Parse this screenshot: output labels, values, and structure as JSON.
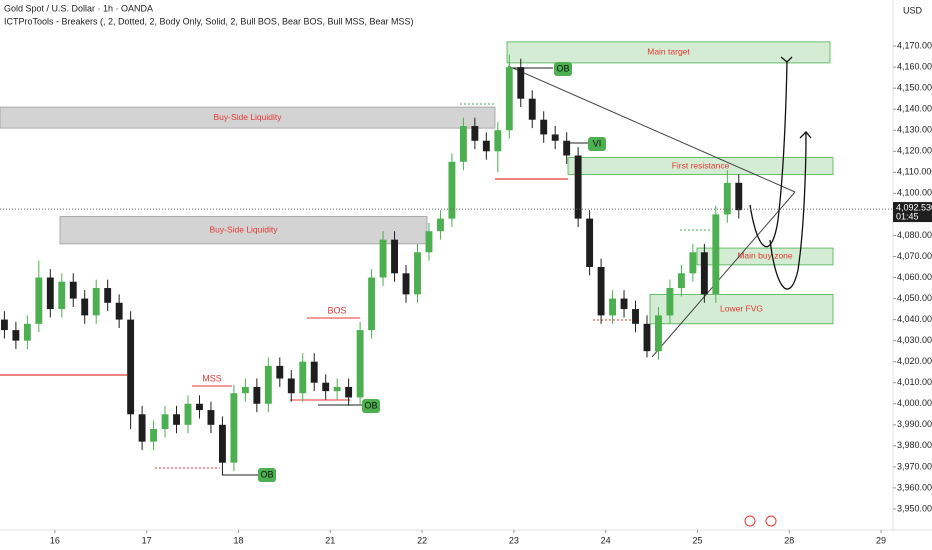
{
  "chart_data": {
    "type": "candlestick",
    "title": "Gold Spot / U.S. Dollar · 1h · OANDA",
    "subtitle": "ICTProTools - Breakers (, 2, Dotted, 2, Body Only, Solid, 2, Bull BOS, Bear BOS, Bull MSS, Bear MSS)",
    "currency": "USD",
    "up_color": "#4caf50",
    "down_color": "#1e1e1e",
    "x": [
      -0.55,
      -0.425,
      -0.3,
      -0.175,
      -0.05,
      0.075,
      0.2,
      0.325,
      0.45,
      0.575,
      0.7,
      0.825,
      0.95,
      1.075,
      1.2,
      1.325,
      1.45,
      1.575,
      1.7,
      1.825,
      1.95,
      2.075,
      2.2,
      2.325,
      2.45,
      2.575,
      2.7,
      2.825,
      2.95,
      3.075,
      3.2,
      3.325,
      3.45,
      3.575,
      3.7,
      3.825,
      3.95,
      4.075,
      4.2,
      4.325,
      4.45,
      4.575,
      4.7,
      4.825,
      4.95,
      5.075,
      5.2,
      5.325,
      5.45,
      5.575,
      5.7,
      5.825,
      5.95,
      6.075,
      6.2,
      6.325,
      6.45,
      6.575,
      6.7,
      6.825,
      6.95,
      7.075,
      7.2,
      7.325,
      7.45
    ],
    "open": [
      4040,
      4035,
      4030,
      4038,
      4060,
      4045,
      4058,
      4050,
      4042,
      4055,
      4048,
      4040,
      3995,
      3982,
      3988,
      3995,
      3990,
      4000,
      3997,
      3990,
      3972,
      4005,
      4008,
      4000,
      4018,
      4012,
      4005,
      4020,
      4010,
      4006,
      4008,
      4003,
      4035,
      4060,
      4078,
      4062,
      4052,
      4072,
      4082,
      4088,
      4115,
      4132,
      4125,
      4120,
      4130,
      4160,
      4145,
      4135,
      4128,
      4125,
      4118,
      4088,
      4065,
      4042,
      4050,
      4045,
      4038,
      4025,
      4042,
      4055,
      4062,
      4072,
      4052,
      4090,
      4105
    ],
    "high": [
      4044,
      4039,
      4042,
      4068,
      4064,
      4062,
      4062,
      4054,
      4059,
      4059,
      4052,
      4044,
      3999,
      3992,
      3999,
      3999,
      4004,
      4004,
      4001,
      3994,
      4009,
      4012,
      4012,
      4022,
      4022,
      4016,
      4024,
      4024,
      4014,
      4012,
      4012,
      4039,
      4064,
      4082,
      4082,
      4066,
      4076,
      4086,
      4092,
      4119,
      4136,
      4136,
      4129,
      4134,
      4166,
      4164,
      4149,
      4139,
      4132,
      4129,
      4122,
      4092,
      4069,
      4054,
      4054,
      4049,
      4042,
      4046,
      4059,
      4066,
      4076,
      4076,
      4094,
      4111,
      4109
    ],
    "low": [
      4031,
      4026,
      4026,
      4034,
      4041,
      4041,
      4046,
      4038,
      4038,
      4044,
      4036,
      3988,
      3978,
      3978,
      3984,
      3986,
      3986,
      3993,
      3986,
      3966,
      3968,
      4001,
      3996,
      3996,
      4008,
      4001,
      4001,
      4006,
      4002,
      4002,
      3999,
      3999,
      4031,
      4056,
      4058,
      4048,
      4048,
      4068,
      4078,
      4084,
      4111,
      4121,
      4116,
      4110,
      4126,
      4141,
      4131,
      4124,
      4121,
      4114,
      4084,
      4061,
      4038,
      4038,
      4041,
      4034,
      4022,
      4021,
      4038,
      4051,
      4058,
      4048,
      4048,
      4086,
      4088
    ],
    "close": [
      4035,
      4030,
      4038,
      4060,
      4045,
      4058,
      4050,
      4042,
      4055,
      4048,
      4040,
      3995,
      3982,
      3988,
      3995,
      3990,
      4000,
      3997,
      3990,
      3972,
      4005,
      4008,
      4000,
      4018,
      4012,
      4005,
      4020,
      4010,
      4006,
      4008,
      4003,
      4035,
      4060,
      4078,
      4062,
      4052,
      4072,
      4082,
      4088,
      4115,
      4132,
      4125,
      4120,
      4130,
      4160,
      4145,
      4135,
      4128,
      4125,
      4118,
      4088,
      4065,
      4042,
      4050,
      4045,
      4038,
      4025,
      4042,
      4055,
      4062,
      4072,
      4052,
      4090,
      4105,
      4092
    ],
    "xlim": [
      -0.598,
      9.13
    ],
    "xticks": [
      {
        "value": 0,
        "label": "16"
      },
      {
        "value": 1,
        "label": "17"
      },
      {
        "value": 2,
        "label": "18"
      },
      {
        "value": 3,
        "label": "21"
      },
      {
        "value": 4,
        "label": "22"
      },
      {
        "value": 5,
        "label": "23"
      },
      {
        "value": 6,
        "label": "24"
      },
      {
        "value": 7,
        "label": "25"
      },
      {
        "value": 8,
        "label": "28"
      },
      {
        "value": 9,
        "label": "29"
      }
    ],
    "ylim": [
      3940,
      4190
    ],
    "yticks": [
      {
        "value": 4170,
        "label": "4,170.000"
      },
      {
        "value": 4160,
        "label": "4,160.000"
      },
      {
        "value": 4150,
        "label": "4,150.000"
      },
      {
        "value": 4140,
        "label": "4,140.000"
      },
      {
        "value": 4130,
        "label": "4,130.000"
      },
      {
        "value": 4120,
        "label": "4,120.000"
      },
      {
        "value": 4110,
        "label": "4,110.000"
      },
      {
        "value": 4100,
        "label": "4,100.000"
      },
      {
        "value": 4090,
        "label": "4,090.000"
      },
      {
        "value": 4080,
        "label": "4,080.000"
      },
      {
        "value": 4070,
        "label": "4,070.000"
      },
      {
        "value": 4060,
        "label": "4,060.000"
      },
      {
        "value": 4050,
        "label": "4,050.000"
      },
      {
        "value": 4040,
        "label": "4,040.000"
      },
      {
        "value": 4030,
        "label": "4,030.000"
      },
      {
        "value": 4020,
        "label": "4,020.000"
      },
      {
        "value": 4010,
        "label": "4,010.000"
      },
      {
        "value": 4000,
        "label": "4,000.000"
      },
      {
        "value": 3990,
        "label": "3,990.000"
      },
      {
        "value": 3980,
        "label": "3,980.000"
      },
      {
        "value": 3970,
        "label": "3,970.000"
      },
      {
        "value": 3960,
        "label": "3,960.000"
      },
      {
        "value": 3950,
        "label": "3,950.000"
      }
    ],
    "grid": false,
    "last_price": {
      "value": 4092.53,
      "label": "4,092.530"
    },
    "countdown": "01:45",
    "zones": [
      {
        "label": "Main target",
        "range": [
          4162,
          4172
        ],
        "color": "#d4ecd4"
      },
      {
        "label": "Buy-Side Liquidity",
        "range": [
          4131,
          4141
        ],
        "color": "#d3d3d3"
      },
      {
        "label": "Buy-Side Liquidity",
        "range": [
          4076,
          4089
        ],
        "color": "#d3d3d3"
      },
      {
        "label": "First resistance",
        "range": [
          4109,
          4117
        ],
        "color": "#d4ecd4"
      },
      {
        "label": "Main buy zone",
        "range": [
          4066,
          4074
        ],
        "color": "#d4ecd4"
      },
      {
        "label": "Lower FVG",
        "range": [
          4038,
          4052
        ],
        "color": "#d4ecd4"
      }
    ],
    "annotations": [
      "OB",
      "OB",
      "OB",
      "VI",
      "MSS",
      "BOS"
    ]
  }
}
